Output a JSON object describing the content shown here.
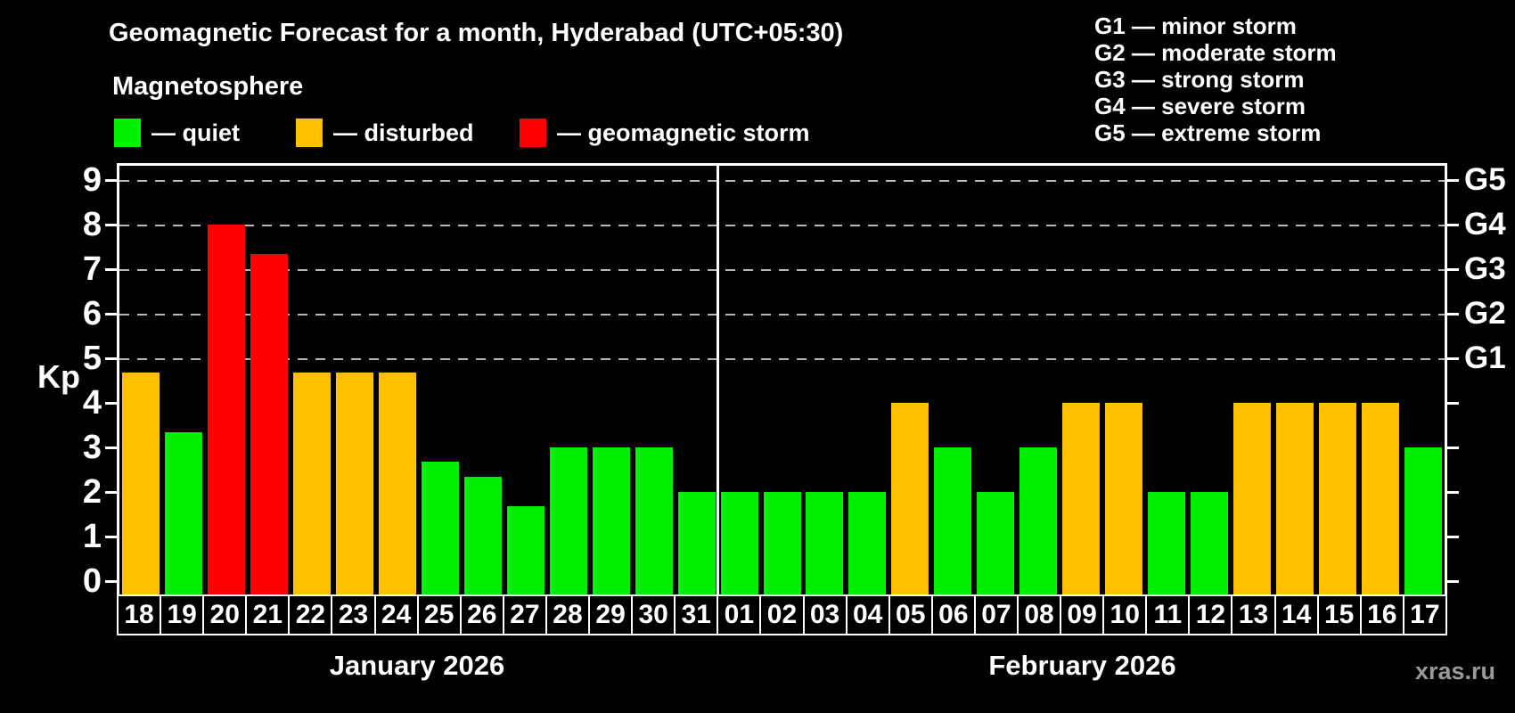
{
  "title": "Geomagnetic Forecast for a month, Hyderabad (UTC+05:30)",
  "subtitle": "Magnetosphere",
  "legend": {
    "items": [
      {
        "id": "quiet",
        "label": "— quiet",
        "color": "#00ee00"
      },
      {
        "id": "disturbed",
        "label": "— disturbed",
        "color": "#ffc000"
      },
      {
        "id": "storm",
        "label": "— geomagnetic storm",
        "color": "#ff0000"
      }
    ]
  },
  "g_legend": {
    "items": [
      {
        "text": "G1 — minor storm"
      },
      {
        "text": "G2 — moderate storm"
      },
      {
        "text": "G3 — strong storm"
      },
      {
        "text": "G4 — severe storm"
      },
      {
        "text": "G5 — extreme storm"
      }
    ]
  },
  "watermark": "xras.ru",
  "chart_data": {
    "type": "bar",
    "title": "Geomagnetic Forecast for a month, Hyderabad (UTC+05:30)",
    "ylabel": "Kp",
    "ylim": [
      0,
      9.4
    ],
    "yticks": [
      0,
      1,
      2,
      3,
      4,
      5,
      6,
      7,
      8,
      9
    ],
    "grid": "horizontal dashed gray lines at Kp 5,6,7,8,9 only",
    "gridlines_at": [
      5,
      6,
      7,
      8,
      9
    ],
    "right_axis_labels": [
      {
        "label": "G1",
        "kp": 5
      },
      {
        "label": "G2",
        "kp": 6
      },
      {
        "label": "G3",
        "kp": 7
      },
      {
        "label": "G4",
        "kp": 8
      },
      {
        "label": "G5",
        "kp": 9
      }
    ],
    "status_colors": {
      "quiet": "#00ee00",
      "disturbed": "#ffc000",
      "storm": "#ff0000"
    },
    "legend_position": "top-left",
    "months": [
      {
        "label": "January 2026",
        "day_count": 14
      },
      {
        "label": "February 2026",
        "day_count": 17
      }
    ],
    "bars": [
      {
        "day": "18",
        "month": "January 2026",
        "kp": 4.67,
        "status": "disturbed"
      },
      {
        "day": "19",
        "month": "January 2026",
        "kp": 3.33,
        "status": "quiet"
      },
      {
        "day": "20",
        "month": "January 2026",
        "kp": 8.0,
        "status": "storm"
      },
      {
        "day": "21",
        "month": "January 2026",
        "kp": 7.33,
        "status": "storm"
      },
      {
        "day": "22",
        "month": "January 2026",
        "kp": 4.67,
        "status": "disturbed"
      },
      {
        "day": "23",
        "month": "January 2026",
        "kp": 4.67,
        "status": "disturbed"
      },
      {
        "day": "24",
        "month": "January 2026",
        "kp": 4.67,
        "status": "disturbed"
      },
      {
        "day": "25",
        "month": "January 2026",
        "kp": 2.67,
        "status": "quiet"
      },
      {
        "day": "26",
        "month": "January 2026",
        "kp": 2.33,
        "status": "quiet"
      },
      {
        "day": "27",
        "month": "January 2026",
        "kp": 1.67,
        "status": "quiet"
      },
      {
        "day": "28",
        "month": "January 2026",
        "kp": 3.0,
        "status": "quiet"
      },
      {
        "day": "29",
        "month": "January 2026",
        "kp": 3.0,
        "status": "quiet"
      },
      {
        "day": "30",
        "month": "January 2026",
        "kp": 3.0,
        "status": "quiet"
      },
      {
        "day": "31",
        "month": "January 2026",
        "kp": 2.0,
        "status": "quiet"
      },
      {
        "day": "01",
        "month": "February 2026",
        "kp": 2.0,
        "status": "quiet"
      },
      {
        "day": "02",
        "month": "February 2026",
        "kp": 2.0,
        "status": "quiet"
      },
      {
        "day": "03",
        "month": "February 2026",
        "kp": 2.0,
        "status": "quiet"
      },
      {
        "day": "04",
        "month": "February 2026",
        "kp": 2.0,
        "status": "quiet"
      },
      {
        "day": "05",
        "month": "February 2026",
        "kp": 4.0,
        "status": "disturbed"
      },
      {
        "day": "06",
        "month": "February 2026",
        "kp": 3.0,
        "status": "quiet"
      },
      {
        "day": "07",
        "month": "February 2026",
        "kp": 2.0,
        "status": "quiet"
      },
      {
        "day": "08",
        "month": "February 2026",
        "kp": 3.0,
        "status": "quiet"
      },
      {
        "day": "09",
        "month": "February 2026",
        "kp": 4.0,
        "status": "disturbed"
      },
      {
        "day": "10",
        "month": "February 2026",
        "kp": 4.0,
        "status": "disturbed"
      },
      {
        "day": "11",
        "month": "February 2026",
        "kp": 2.0,
        "status": "quiet"
      },
      {
        "day": "12",
        "month": "February 2026",
        "kp": 2.0,
        "status": "quiet"
      },
      {
        "day": "13",
        "month": "February 2026",
        "kp": 4.0,
        "status": "disturbed"
      },
      {
        "day": "14",
        "month": "February 2026",
        "kp": 4.0,
        "status": "disturbed"
      },
      {
        "day": "15",
        "month": "February 2026",
        "kp": 4.0,
        "status": "disturbed"
      },
      {
        "day": "16",
        "month": "February 2026",
        "kp": 4.0,
        "status": "disturbed"
      },
      {
        "day": "17",
        "month": "February 2026",
        "kp": 3.0,
        "status": "quiet"
      }
    ]
  }
}
